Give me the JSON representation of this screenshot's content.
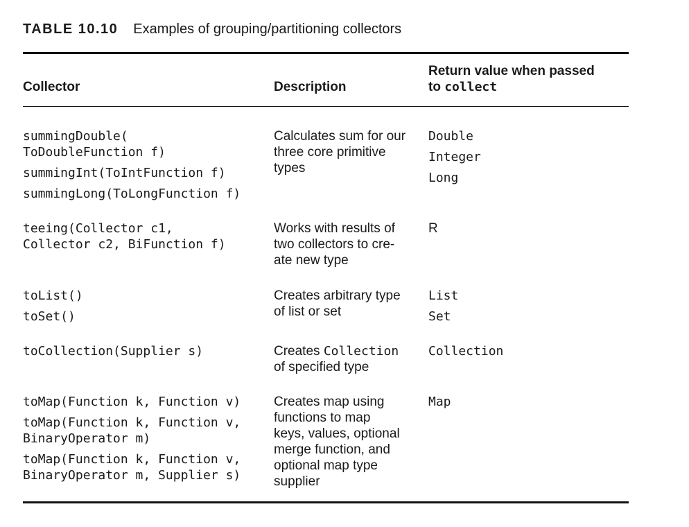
{
  "caption": {
    "label": "TABLE 10.10",
    "title": "Examples of grouping/partitioning collectors"
  },
  "table": {
    "headers": {
      "collector": "Collector",
      "description": "Description",
      "return_line1": "Return value when passed",
      "return_line2_prefix": "to ",
      "return_line2_code": "collect"
    },
    "rows": [
      {
        "collector_entries": [
          [
            "summingDouble(",
            "ToDoubleFunction f)"
          ],
          [
            "summingInt(ToIntFunction f)"
          ],
          [
            "summingLong(ToLongFunction f)"
          ]
        ],
        "description_lines": [
          "Calculates sum for our",
          "three core primitive",
          "types"
        ],
        "returns": [
          "Double",
          "Integer",
          "Long"
        ]
      },
      {
        "collector_entries": [
          [
            "teeing(Collector c1,",
            "Collector c2, BiFunction f)"
          ]
        ],
        "description_lines": [
          "Works with results of",
          "two collectors to cre-",
          "ate new type"
        ],
        "returns": [
          "R"
        ]
      },
      {
        "collector_entries": [
          [
            "toList()"
          ],
          [
            "toSet()"
          ]
        ],
        "description_lines": [
          "Creates arbitrary type",
          "of list or set"
        ],
        "returns": [
          "List",
          "Set"
        ]
      },
      {
        "collector_entries": [
          [
            "toCollection(Supplier s)"
          ]
        ],
        "description_prefix": "Creates ",
        "description_code": "Collection",
        "description_lines": [
          "of specified type"
        ],
        "returns": [
          "Collection"
        ]
      },
      {
        "collector_entries": [
          [
            "toMap(Function k, Function v)"
          ],
          [
            "toMap(Function k, Function v,",
            "BinaryOperator m)"
          ],
          [
            "toMap(Function k, Function v,",
            "BinaryOperator m, Supplier s)"
          ]
        ],
        "description_lines": [
          "Creates map using",
          "functions to map",
          "keys, values, optional",
          "merge function, and",
          "optional map type",
          "supplier"
        ],
        "returns": [
          "Map"
        ]
      }
    ]
  }
}
